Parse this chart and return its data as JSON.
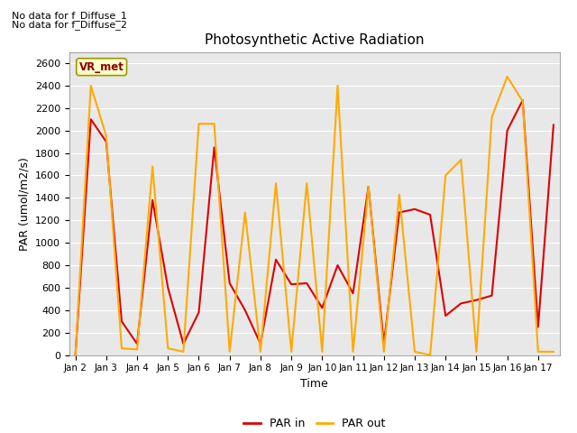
{
  "title": "Photosynthetic Active Radiation",
  "xlabel": "Time",
  "ylabel": "PAR (umol/m2/s)",
  "annotations": [
    "No data for f_Diffuse_1",
    "No data for f_Diffuse_2"
  ],
  "vr_met_label": "VR_met",
  "ylim": [
    0,
    2700
  ],
  "yticks": [
    0,
    200,
    400,
    600,
    800,
    1000,
    1200,
    1400,
    1600,
    1800,
    2000,
    2200,
    2400,
    2600
  ],
  "xtick_labels": [
    "Jan 2",
    "Jan 3",
    "Jan 4",
    "Jan 5",
    "Jan 6",
    "Jan 7",
    "Jan 8",
    "Jan 9",
    "Jan 10",
    "Jan 11",
    "Jan 12",
    "Jan 13",
    "Jan 14",
    "Jan 15",
    "Jan 16",
    "Jan 17"
  ],
  "par_in_x": [
    0,
    0.5,
    1.0,
    1.5,
    2.0,
    2.5,
    3.0,
    3.5,
    4.0,
    4.5,
    5.0,
    5.5,
    6.0,
    6.5,
    7.0,
    7.5,
    8.0,
    8.5,
    9.0,
    9.5,
    10.0,
    10.5,
    11.0,
    11.5,
    12.0,
    12.5,
    13.0,
    13.5,
    14.0,
    14.5,
    15.0,
    15.5
  ],
  "par_in_y": [
    0,
    2100,
    1900,
    300,
    100,
    1380,
    600,
    100,
    380,
    1850,
    640,
    400,
    100,
    850,
    630,
    640,
    420,
    800,
    550,
    1500,
    100,
    1270,
    1300,
    1250,
    350,
    460,
    490,
    530,
    2000,
    2270,
    250,
    2050
  ],
  "par_out_x": [
    0,
    0.5,
    1.0,
    1.5,
    2.0,
    2.5,
    3.0,
    3.5,
    4.0,
    4.5,
    5.0,
    5.5,
    6.0,
    6.5,
    7.0,
    7.5,
    8.0,
    8.5,
    9.0,
    9.5,
    10.0,
    10.5,
    11.0,
    11.5,
    12.0,
    12.5,
    13.0,
    13.5,
    14.0,
    14.5,
    15.0,
    15.5
  ],
  "par_out_y": [
    0,
    2400,
    1950,
    60,
    50,
    1680,
    60,
    30,
    2060,
    2060,
    30,
    1270,
    30,
    1530,
    30,
    1530,
    30,
    2400,
    30,
    1500,
    30,
    1430,
    30,
    0,
    1600,
    1740,
    30,
    2120,
    2480,
    2260,
    30,
    30
  ],
  "color_in": "#dd0000",
  "color_out": "#ffaa00",
  "bg_color": "#e8e8e8",
  "legend_labels": [
    "PAR in",
    "PAR out"
  ]
}
